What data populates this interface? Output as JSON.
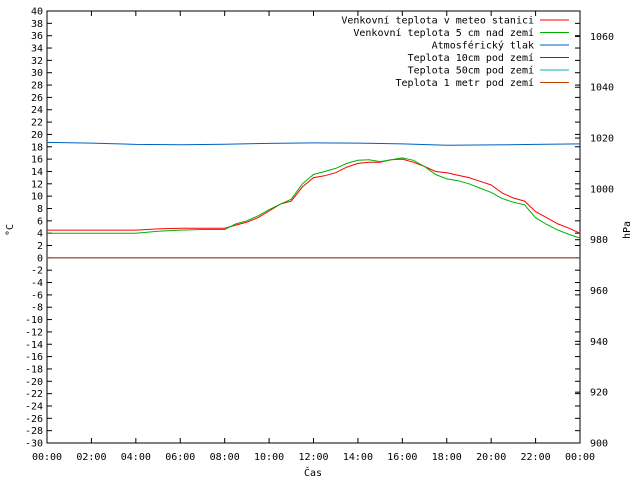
{
  "chart_data": {
    "type": "line",
    "xlabel": "Čas",
    "ylabel_left": "°C",
    "ylabel_right": "hPa",
    "x_ticks": [
      "00:00",
      "02:00",
      "04:00",
      "06:00",
      "08:00",
      "10:00",
      "12:00",
      "14:00",
      "16:00",
      "18:00",
      "20:00",
      "22:00",
      "00:00"
    ],
    "xlim_hours": [
      0,
      24
    ],
    "ylim_left": [
      -30,
      40
    ],
    "ylim_right": [
      900,
      1070
    ],
    "y_left_ticks": [
      -30,
      -28,
      -26,
      -24,
      -22,
      -20,
      -18,
      -16,
      -14,
      -12,
      -10,
      -8,
      -6,
      -4,
      -2,
      0,
      2,
      4,
      6,
      8,
      10,
      12,
      14,
      16,
      18,
      20,
      22,
      24,
      26,
      28,
      30,
      32,
      34,
      36,
      38,
      40
    ],
    "y_right_ticks": [
      900,
      920,
      940,
      960,
      980,
      1000,
      1020,
      1040,
      1060
    ],
    "legend_position": "top-right",
    "series": [
      {
        "name": "Venkovní teplota v meteo stanici",
        "color": "#ff0000",
        "axis": "left",
        "x": [
          0,
          2,
          4,
          5,
          6,
          7,
          8,
          8.5,
          9,
          9.5,
          10,
          10.5,
          11,
          11.5,
          12,
          12.5,
          13,
          13.5,
          14,
          14.5,
          15,
          15.5,
          16,
          16.5,
          17,
          17.5,
          18,
          18.5,
          19,
          19.5,
          20,
          20.5,
          21,
          21.5,
          22,
          22.5,
          23,
          23.5,
          24
        ],
        "y": [
          4.5,
          4.5,
          4.5,
          4.7,
          4.8,
          4.8,
          4.8,
          5.3,
          5.8,
          6.5,
          7.6,
          8.7,
          9.2,
          11.5,
          13.0,
          13.3,
          13.8,
          14.7,
          15.3,
          15.5,
          15.5,
          15.9,
          16.0,
          15.5,
          14.8,
          14.0,
          13.8,
          13.4,
          13.0,
          12.4,
          11.8,
          10.5,
          9.7,
          9.2,
          7.5,
          6.5,
          5.5,
          4.8,
          4.0
        ]
      },
      {
        "name": "Venkovní teplota 5 cm nad zemí",
        "color": "#00b000",
        "axis": "left",
        "x": [
          0,
          2,
          4,
          5,
          6,
          7,
          8,
          8.5,
          9,
          9.5,
          10,
          10.5,
          11,
          11.5,
          12,
          12.5,
          13,
          13.5,
          14,
          14.5,
          15,
          15.5,
          16,
          16.5,
          17,
          17.5,
          18,
          18.5,
          19,
          19.5,
          20,
          20.5,
          21,
          21.5,
          22,
          22.5,
          23,
          23.5,
          24
        ],
        "y": [
          4.0,
          4.0,
          4.0,
          4.3,
          4.5,
          4.6,
          4.6,
          5.5,
          6.0,
          6.8,
          7.8,
          8.7,
          9.5,
          12.0,
          13.5,
          14.0,
          14.5,
          15.3,
          15.8,
          15.9,
          15.6,
          15.9,
          16.2,
          15.8,
          14.8,
          13.5,
          12.8,
          12.5,
          12.0,
          11.3,
          10.6,
          9.6,
          9.0,
          8.6,
          6.5,
          5.4,
          4.5,
          3.8,
          3.2
        ]
      },
      {
        "name": "Atmosférický tlak",
        "color": "#0060c0",
        "axis": "right",
        "x": [
          0,
          2,
          4,
          6,
          8,
          10,
          12,
          14,
          16,
          18,
          20,
          22,
          24
        ],
        "y": [
          1018.3,
          1018.0,
          1017.5,
          1017.4,
          1017.6,
          1017.9,
          1018.1,
          1018.0,
          1017.7,
          1017.2,
          1017.3,
          1017.5,
          1017.7
        ]
      },
      {
        "name": "Teplota 10cm pod zemí",
        "color": "#a000a0",
        "axis": "left",
        "x": [
          0,
          24
        ],
        "y": [
          0,
          0
        ]
      },
      {
        "name": "Teplota 50cm pod zemí",
        "color": "#00b0c0",
        "axis": "left",
        "x": [
          0,
          24
        ],
        "y": [
          0,
          0
        ]
      },
      {
        "name": "Teplota 1 metr pod zemí",
        "color": "#c04000",
        "axis": "left",
        "x": [
          0,
          24
        ],
        "y": [
          0,
          0
        ]
      }
    ]
  }
}
